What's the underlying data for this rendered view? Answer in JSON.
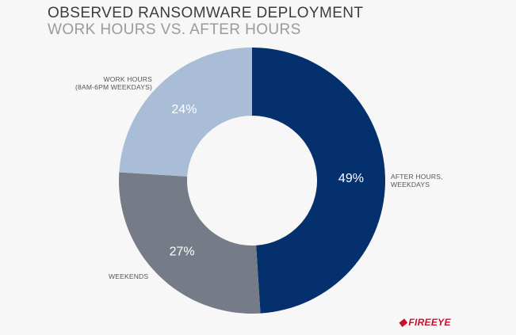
{
  "header": {
    "title": "OBSERVED RANSOMWARE DEPLOYMENT",
    "subtitle": "WORK HOURS VS. AFTER HOURS"
  },
  "brand": {
    "logo_text": "FIREEYE",
    "logo_color": "#c8102e"
  },
  "chart_data": {
    "type": "pie",
    "donut": true,
    "title": "OBSERVED RANSOMWARE DEPLOYMENT",
    "subtitle": "WORK HOURS VS. AFTER HOURS",
    "slices": [
      {
        "label_lines": [
          "AFTER HOURS,",
          "WEEKDAYS"
        ],
        "value": 49,
        "value_label": "49%",
        "color": "#05306e"
      },
      {
        "label_lines": [
          "WEEKENDS"
        ],
        "value": 27,
        "value_label": "27%",
        "color": "#757c87"
      },
      {
        "label_lines": [
          "WORK HOURS",
          "(8AM-6PM WEEKDAYS)"
        ],
        "value": 24,
        "value_label": "24%",
        "color": "#a9bdd7"
      }
    ]
  }
}
